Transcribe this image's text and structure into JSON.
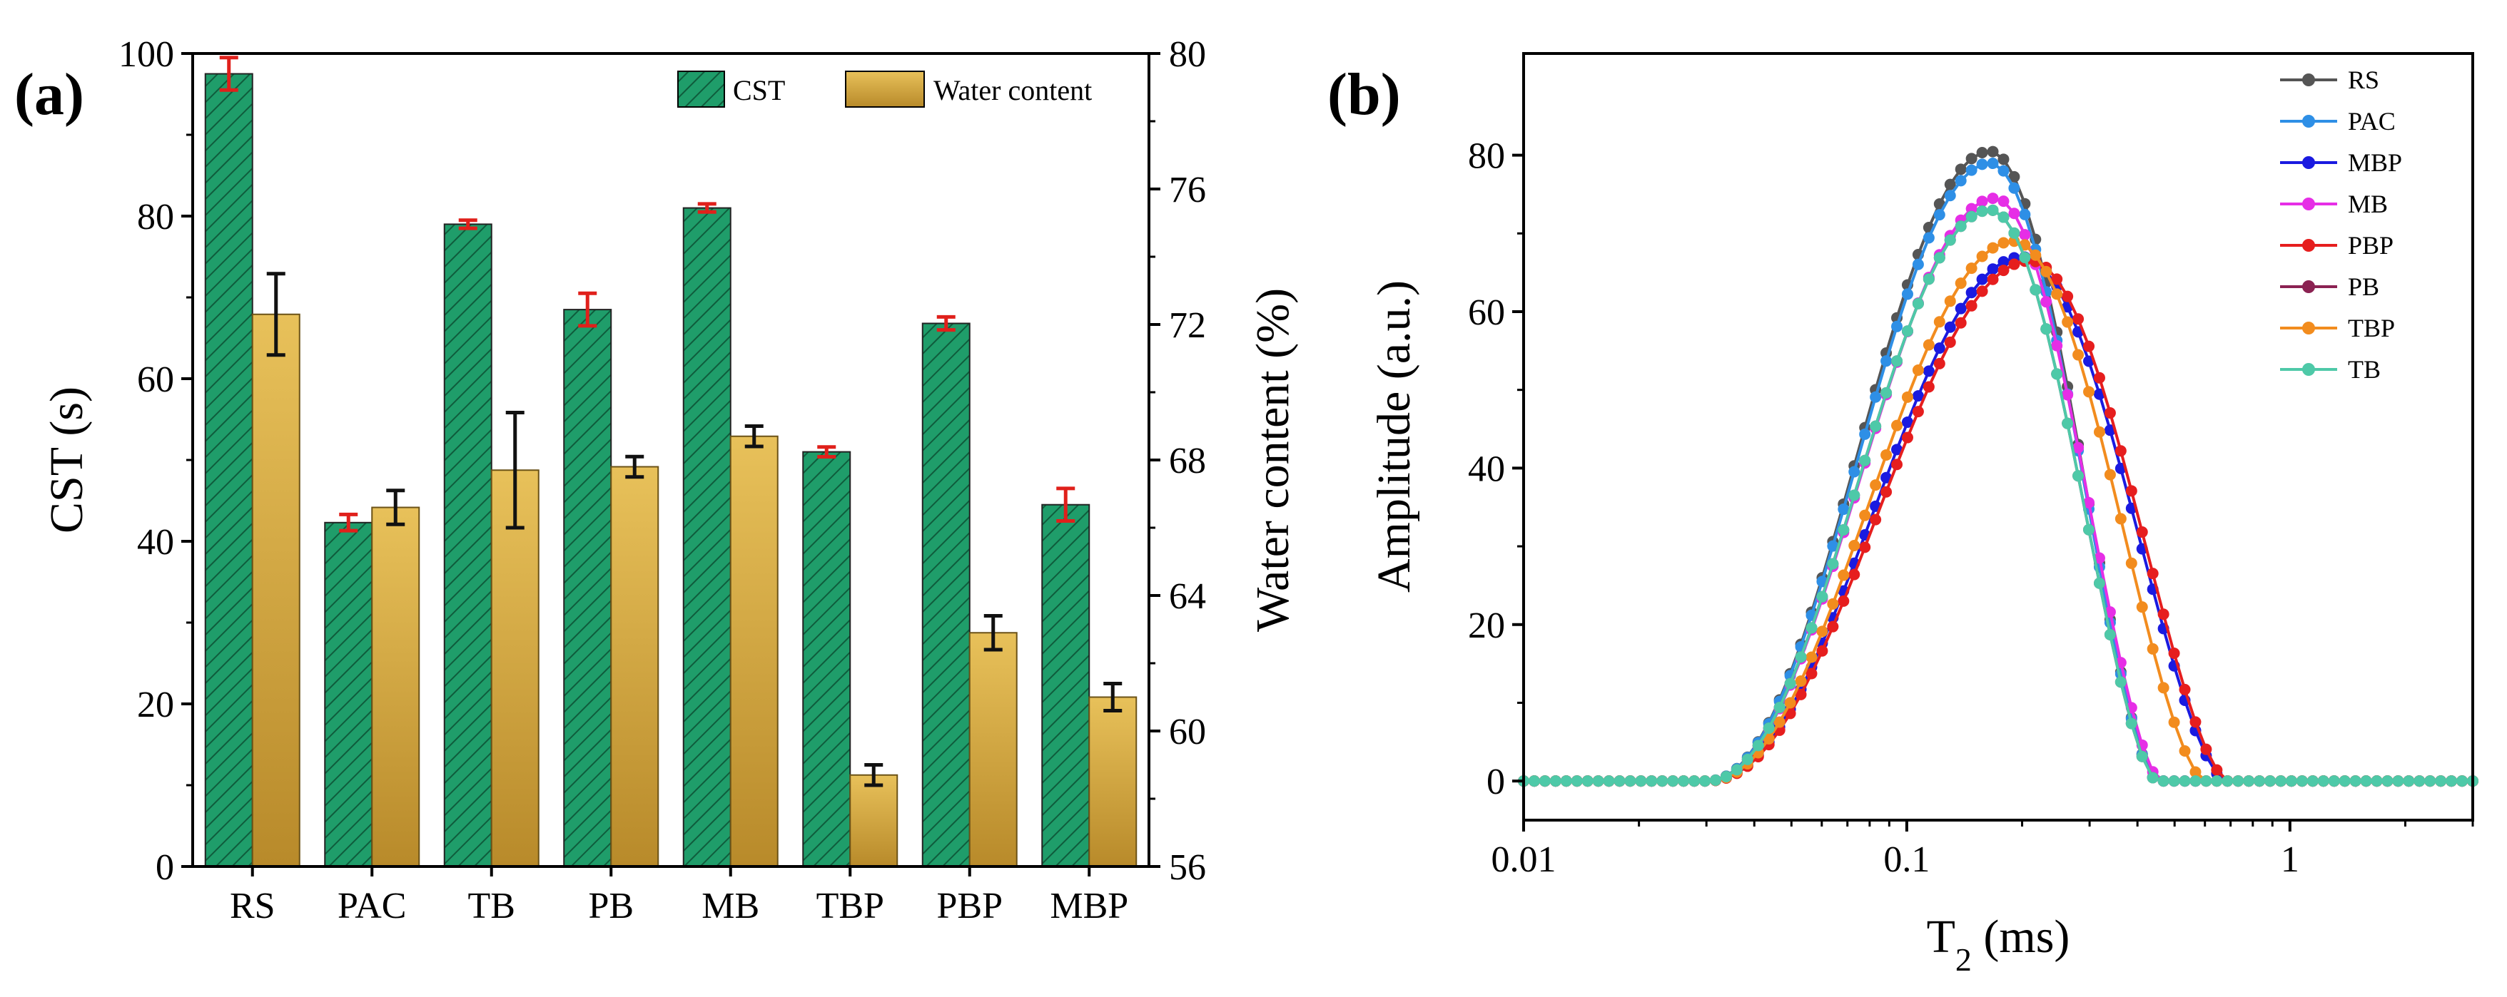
{
  "panels": {
    "a": {
      "label": "(a)"
    },
    "b": {
      "label": "(b)"
    }
  },
  "colors": {
    "cst_fill": "#1f9d6a",
    "cst_hatch": "#0f5c3c",
    "water_fill_top": "#e8c15a",
    "water_fill_bottom": "#b88a2a",
    "cst_error": "#e0201b",
    "water_error": "#111111"
  },
  "chart_data": [
    {
      "type": "bar",
      "panel": "(a)",
      "categories": [
        "RS",
        "PAC",
        "TB",
        "PB",
        "MB",
        "TBP",
        "PBP",
        "MBP"
      ],
      "xlabel": "",
      "ylabel": "CST (s)",
      "ylabel_right": "Water content (%)",
      "ylim": [
        0,
        100
      ],
      "yticks": [
        "0",
        "20",
        "40",
        "60",
        "80",
        "100"
      ],
      "ylim_right": [
        56,
        80
      ],
      "yticks_right": [
        "56",
        "60",
        "64",
        "68",
        "72",
        "76",
        "80"
      ],
      "legend_position": "top-right",
      "series": [
        {
          "name": "CST",
          "axis": "left",
          "values": [
            97.5,
            42.3,
            79.0,
            68.5,
            81.0,
            51.0,
            66.8,
            44.5
          ],
          "errors": [
            2.0,
            1.0,
            0.5,
            2.0,
            0.5,
            0.6,
            0.8,
            2.0
          ]
        },
        {
          "name": "Water content",
          "axis": "right",
          "values": [
            72.3,
            66.6,
            67.7,
            67.8,
            68.7,
            58.7,
            62.9,
            61.0
          ],
          "errors": [
            1.2,
            0.5,
            1.7,
            0.3,
            0.3,
            0.3,
            0.5,
            0.4
          ]
        }
      ]
    },
    {
      "type": "line",
      "panel": "(b)",
      "xlabel_main": "T",
      "xlabel_sub": "2",
      "xlabel_tail": " (ms)",
      "ylabel": "Amplitude (a.u.)",
      "xscale": "log",
      "xlim": [
        0.01,
        3
      ],
      "xticks": [
        "0.01",
        "0.1",
        "1"
      ],
      "ylim": [
        -5,
        93
      ],
      "yticks": [
        "0",
        "20",
        "40",
        "60",
        "80"
      ],
      "legend_position": "top-right",
      "series": [
        {
          "name": "RS",
          "color": "#555555",
          "x0": 0.03,
          "xpeak": 0.165,
          "xend": 0.45,
          "peak": 80.5
        },
        {
          "name": "PAC",
          "color": "#2e8fe6",
          "x0": 0.03,
          "xpeak": 0.165,
          "xend": 0.45,
          "peak": 79.0
        },
        {
          "name": "MBP",
          "color": "#1a1ae0",
          "x0": 0.03,
          "xpeak": 0.2,
          "xend": 0.68,
          "peak": 67.0
        },
        {
          "name": "MB",
          "color": "#e62ee6",
          "x0": 0.03,
          "xpeak": 0.17,
          "xend": 0.46,
          "peak": 74.5
        },
        {
          "name": "PBP",
          "color": "#e61e1e",
          "x0": 0.03,
          "xpeak": 0.21,
          "xend": 0.69,
          "peak": 66.5
        },
        {
          "name": "PB",
          "color": "#8b2252",
          "x0": 0.03,
          "xpeak": 0.165,
          "xend": 0.45,
          "peak": 73.0
        },
        {
          "name": "TBP",
          "color": "#f28c1e",
          "x0": 0.03,
          "xpeak": 0.19,
          "xend": 0.6,
          "peak": 69.0
        },
        {
          "name": "TB",
          "color": "#4ec9a8",
          "x0": 0.03,
          "xpeak": 0.165,
          "xend": 0.45,
          "peak": 73.0
        }
      ]
    }
  ]
}
